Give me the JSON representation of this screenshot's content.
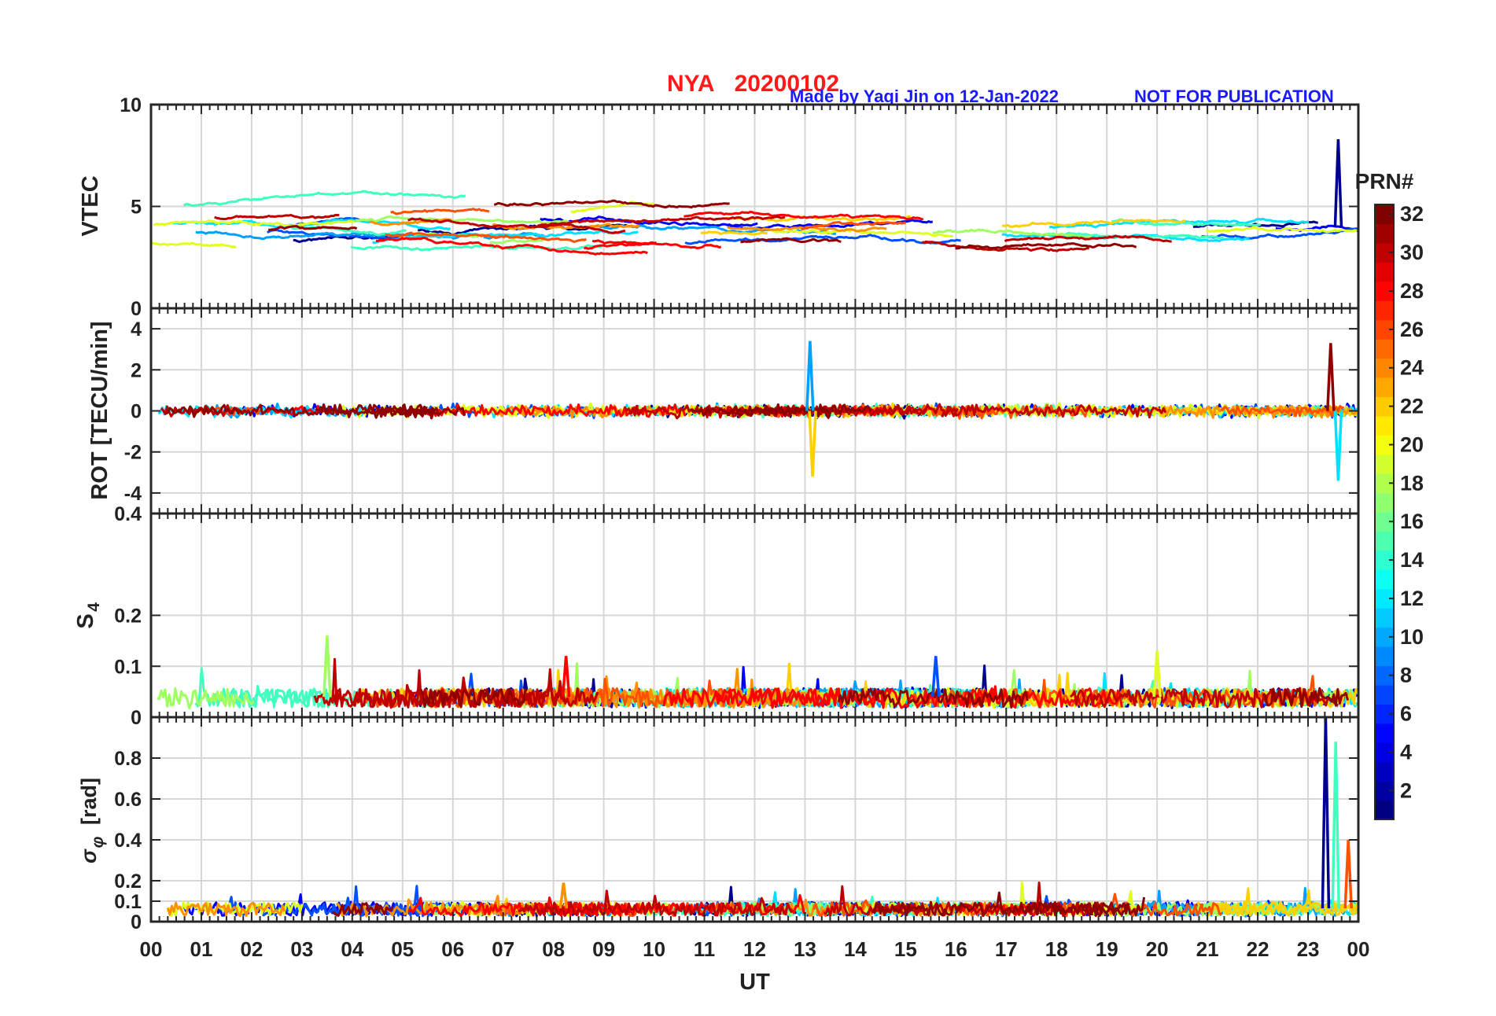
{
  "title": {
    "station": "NYA",
    "date": "20200102",
    "credit": "Made by Yaqi Jin on 12-Jan-2022",
    "notice": "NOT FOR PUBLICATION"
  },
  "chart_data": {
    "type": "line",
    "x_hours_range": [
      0,
      24
    ],
    "xlabel": "UT",
    "x_tick_labels": [
      "00",
      "01",
      "02",
      "03",
      "04",
      "05",
      "06",
      "07",
      "08",
      "09",
      "10",
      "11",
      "12",
      "13",
      "14",
      "15",
      "16",
      "17",
      "18",
      "19",
      "20",
      "21",
      "22",
      "23",
      "00"
    ],
    "grid": true,
    "colorbar": {
      "label": "PRN#",
      "range": [
        1,
        32
      ],
      "tick_labels": [
        "2",
        "4",
        "6",
        "8",
        "10",
        "12",
        "14",
        "16",
        "18",
        "20",
        "22",
        "24",
        "26",
        "28",
        "30",
        "32"
      ],
      "colormap": "jet"
    },
    "panels": [
      {
        "name": "vtec",
        "ylabel": "VTEC",
        "ylim": [
          0,
          10
        ],
        "y_ticks": [
          0,
          5,
          10
        ],
        "y_tick_labels": [
          "0",
          "5",
          "10"
        ],
        "typical_range": [
          2,
          6
        ],
        "peak_values": [
          {
            "x": 23.6,
            "y": 8.3
          }
        ]
      },
      {
        "name": "rot",
        "ylabel": "ROT [TECU/min]",
        "ylim": [
          -5,
          5
        ],
        "y_ticks": [
          -4,
          -2,
          0,
          2,
          4
        ],
        "y_tick_labels": [
          "-4",
          "-2",
          "0",
          "2",
          "4"
        ],
        "typical_range": [
          -0.5,
          0.5
        ],
        "peak_values": [
          {
            "x": 13.1,
            "y": 3.4
          },
          {
            "x": 13.15,
            "y": -3.2
          },
          {
            "x": 23.45,
            "y": 3.3
          },
          {
            "x": 23.6,
            "y": -3.4
          }
        ]
      },
      {
        "name": "s4",
        "ylabel": "S4",
        "ylabel_sub": "4",
        "ylabel_main": "S",
        "ylim": [
          0,
          0.4
        ],
        "y_ticks": [
          0,
          0.1,
          0.2,
          0.4
        ],
        "y_tick_labels": [
          "0",
          "0.1",
          "0.2",
          "0.4"
        ],
        "typical_range": [
          0.02,
          0.06
        ],
        "peak_values": [
          {
            "x": 3.5,
            "y": 0.16
          },
          {
            "x": 8.25,
            "y": 0.12
          },
          {
            "x": 15.6,
            "y": 0.12
          },
          {
            "x": 20.0,
            "y": 0.13
          }
        ]
      },
      {
        "name": "sigma_phi",
        "ylabel": "σ_φ [rad]",
        "ylabel_sigma": "σ",
        "ylabel_phi": "φ",
        "ylabel_unit": "[rad]",
        "ylim": [
          0,
          1
        ],
        "y_ticks": [
          0,
          0.1,
          0.2,
          0.4,
          0.6,
          0.8
        ],
        "y_tick_labels": [
          "0",
          "0.1",
          "0.2",
          "0.4",
          "0.6",
          "0.8"
        ],
        "typical_range": [
          0.03,
          0.1
        ],
        "peak_values": [
          {
            "x": 8.2,
            "y": 0.19
          },
          {
            "x": 23.35,
            "y": 1.0
          },
          {
            "x": 23.55,
            "y": 0.88
          },
          {
            "x": 23.8,
            "y": 0.4
          }
        ]
      }
    ],
    "series_colors": [
      "#00008f",
      "#0000ff",
      "#0050ff",
      "#00a0ff",
      "#00e0ff",
      "#40ffbf",
      "#9fff60",
      "#e0ff20",
      "#ffd000",
      "#ff9000",
      "#ff5000",
      "#ff0000",
      "#c00000",
      "#8f0000"
    ]
  }
}
